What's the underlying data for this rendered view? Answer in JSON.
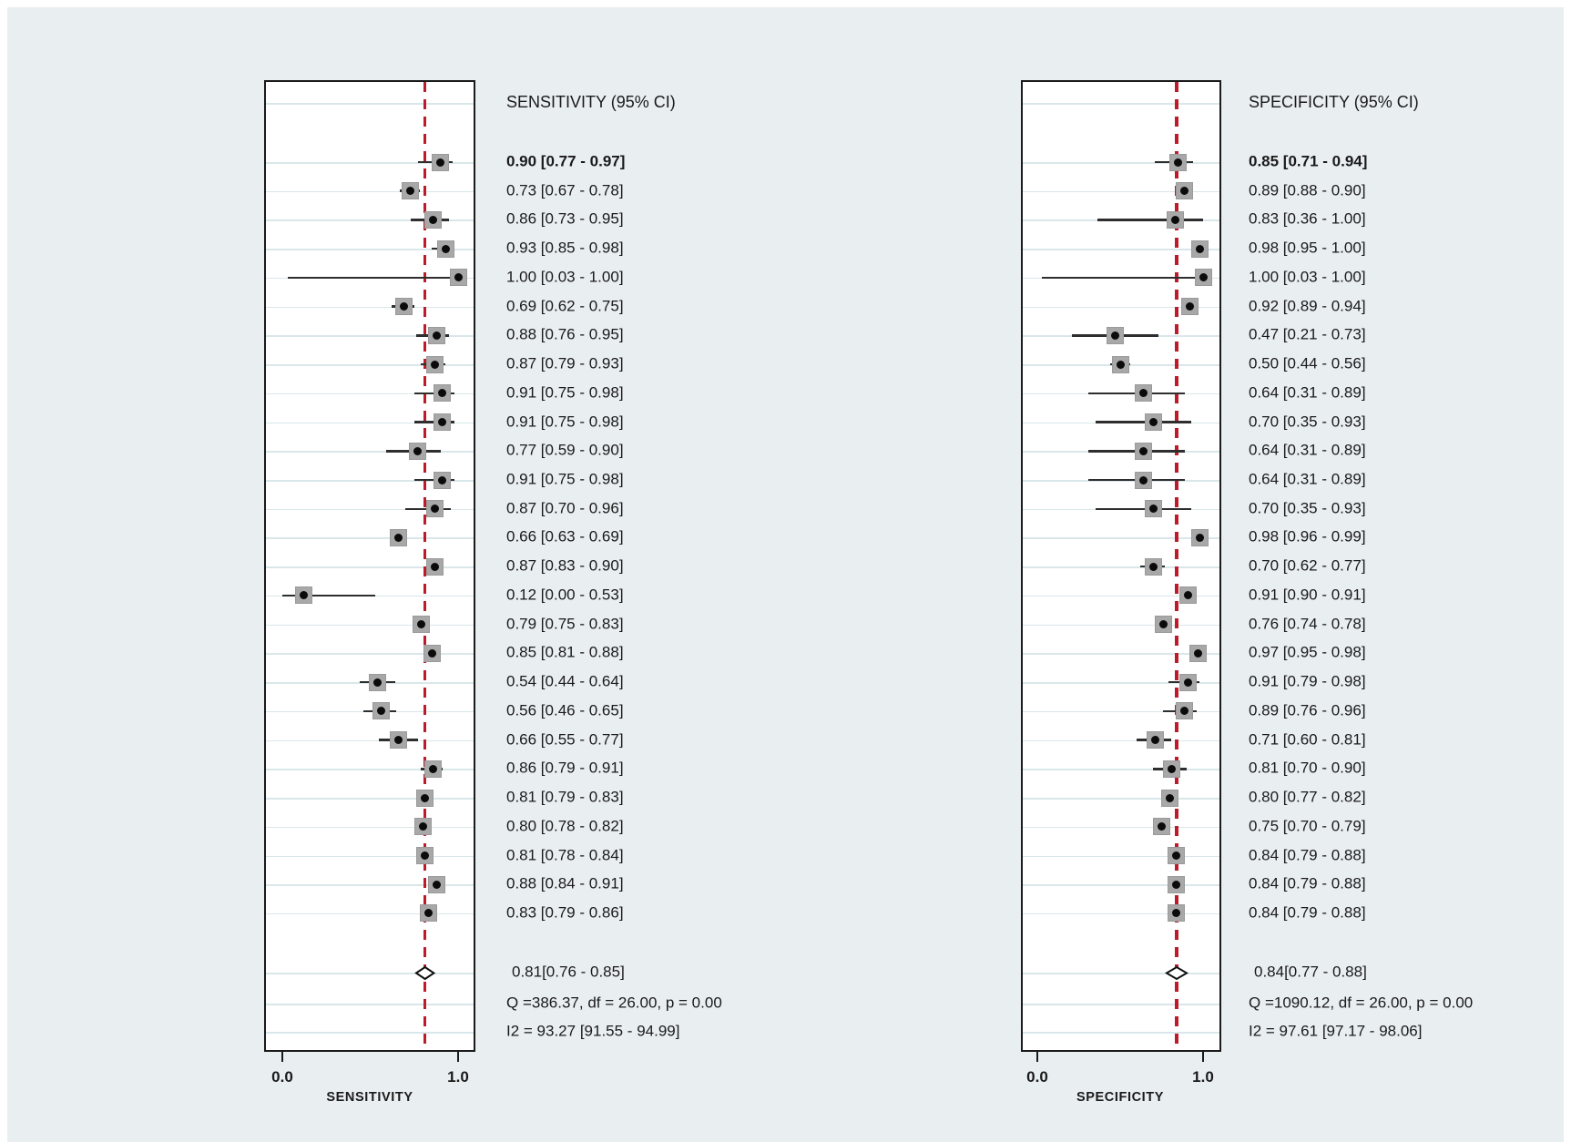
{
  "chart_data": [
    {
      "type": "forest",
      "title": "SENSITIVITY (95% CI)",
      "xlabel": "SENSITIVITY",
      "x_ticks": [
        "0.0",
        "1.0"
      ],
      "xlim": [
        -0.1,
        1.1
      ],
      "grid": true,
      "pooled_line": 0.81,
      "studies": [
        {
          "est": 0.9,
          "lo": 0.77,
          "hi": 0.97,
          "label": "0.90 [0.77 - 0.97]",
          "bold": true
        },
        {
          "est": 0.73,
          "lo": 0.67,
          "hi": 0.78,
          "label": "0.73 [0.67 - 0.78]",
          "bold": false
        },
        {
          "est": 0.86,
          "lo": 0.73,
          "hi": 0.95,
          "label": "0.86 [0.73 - 0.95]",
          "bold": false
        },
        {
          "est": 0.93,
          "lo": 0.85,
          "hi": 0.98,
          "label": "0.93 [0.85 - 0.98]",
          "bold": false
        },
        {
          "est": 1.0,
          "lo": 0.03,
          "hi": 1.0,
          "label": "1.00 [0.03 - 1.00]",
          "bold": false
        },
        {
          "est": 0.69,
          "lo": 0.62,
          "hi": 0.75,
          "label": "0.69 [0.62 - 0.75]",
          "bold": false
        },
        {
          "est": 0.88,
          "lo": 0.76,
          "hi": 0.95,
          "label": "0.88 [0.76 - 0.95]",
          "bold": false
        },
        {
          "est": 0.87,
          "lo": 0.79,
          "hi": 0.93,
          "label": "0.87 [0.79 - 0.93]",
          "bold": false
        },
        {
          "est": 0.91,
          "lo": 0.75,
          "hi": 0.98,
          "label": "0.91 [0.75 - 0.98]",
          "bold": false
        },
        {
          "est": 0.91,
          "lo": 0.75,
          "hi": 0.98,
          "label": "0.91 [0.75 - 0.98]",
          "bold": false
        },
        {
          "est": 0.77,
          "lo": 0.59,
          "hi": 0.9,
          "label": "0.77 [0.59 - 0.90]",
          "bold": false
        },
        {
          "est": 0.91,
          "lo": 0.75,
          "hi": 0.98,
          "label": "0.91 [0.75 - 0.98]",
          "bold": false
        },
        {
          "est": 0.87,
          "lo": 0.7,
          "hi": 0.96,
          "label": "0.87 [0.70 - 0.96]",
          "bold": false
        },
        {
          "est": 0.66,
          "lo": 0.63,
          "hi": 0.69,
          "label": "0.66 [0.63 - 0.69]",
          "bold": false
        },
        {
          "est": 0.87,
          "lo": 0.83,
          "hi": 0.9,
          "label": "0.87 [0.83 - 0.90]",
          "bold": false
        },
        {
          "est": 0.12,
          "lo": 0.0,
          "hi": 0.53,
          "label": "0.12 [0.00 - 0.53]",
          "bold": false
        },
        {
          "est": 0.79,
          "lo": 0.75,
          "hi": 0.83,
          "label": "0.79 [0.75 - 0.83]",
          "bold": false
        },
        {
          "est": 0.85,
          "lo": 0.81,
          "hi": 0.88,
          "label": "0.85 [0.81 - 0.88]",
          "bold": false
        },
        {
          "est": 0.54,
          "lo": 0.44,
          "hi": 0.64,
          "label": "0.54 [0.44 - 0.64]",
          "bold": false
        },
        {
          "est": 0.56,
          "lo": 0.46,
          "hi": 0.65,
          "label": "0.56 [0.46 - 0.65]",
          "bold": false
        },
        {
          "est": 0.66,
          "lo": 0.55,
          "hi": 0.77,
          "label": "0.66 [0.55 - 0.77]",
          "bold": false
        },
        {
          "est": 0.86,
          "lo": 0.79,
          "hi": 0.91,
          "label": "0.86 [0.79 - 0.91]",
          "bold": false
        },
        {
          "est": 0.81,
          "lo": 0.79,
          "hi": 0.83,
          "label": "0.81 [0.79 - 0.83]",
          "bold": false
        },
        {
          "est": 0.8,
          "lo": 0.78,
          "hi": 0.82,
          "label": "0.80 [0.78 - 0.82]",
          "bold": false
        },
        {
          "est": 0.81,
          "lo": 0.78,
          "hi": 0.84,
          "label": "0.81 [0.78 - 0.84]",
          "bold": false
        },
        {
          "est": 0.88,
          "lo": 0.84,
          "hi": 0.91,
          "label": "0.88 [0.84 - 0.91]",
          "bold": false
        },
        {
          "est": 0.83,
          "lo": 0.79,
          "hi": 0.86,
          "label": "0.83 [0.79 - 0.86]",
          "bold": false
        }
      ],
      "summary": {
        "pooled": {
          "est": 0.81,
          "lo": 0.76,
          "hi": 0.85,
          "label": "0.81[0.76 - 0.85]"
        },
        "q_line": "Q =386.37, df = 26.00, p =  0.00",
        "i2_line": "I2 = 93.27 [91.55 - 94.99]"
      }
    },
    {
      "type": "forest",
      "title": "SPECIFICITY (95% CI)",
      "xlabel": "SPECIFICITY",
      "x_ticks": [
        "0.0",
        "1.0"
      ],
      "xlim": [
        -0.1,
        1.1
      ],
      "grid": true,
      "pooled_line": 0.84,
      "studies": [
        {
          "est": 0.85,
          "lo": 0.71,
          "hi": 0.94,
          "label": "0.85 [0.71 - 0.94]",
          "bold": true
        },
        {
          "est": 0.89,
          "lo": 0.88,
          "hi": 0.9,
          "label": "0.89 [0.88 - 0.90]",
          "bold": false
        },
        {
          "est": 0.83,
          "lo": 0.36,
          "hi": 1.0,
          "label": "0.83 [0.36 - 1.00]",
          "bold": false
        },
        {
          "est": 0.98,
          "lo": 0.95,
          "hi": 1.0,
          "label": "0.98 [0.95 - 1.00]",
          "bold": false
        },
        {
          "est": 1.0,
          "lo": 0.03,
          "hi": 1.0,
          "label": "1.00 [0.03 - 1.00]",
          "bold": false
        },
        {
          "est": 0.92,
          "lo": 0.89,
          "hi": 0.94,
          "label": "0.92 [0.89 - 0.94]",
          "bold": false
        },
        {
          "est": 0.47,
          "lo": 0.21,
          "hi": 0.73,
          "label": "0.47 [0.21 - 0.73]",
          "bold": false
        },
        {
          "est": 0.5,
          "lo": 0.44,
          "hi": 0.56,
          "label": "0.50 [0.44 - 0.56]",
          "bold": false
        },
        {
          "est": 0.64,
          "lo": 0.31,
          "hi": 0.89,
          "label": "0.64 [0.31 - 0.89]",
          "bold": false
        },
        {
          "est": 0.7,
          "lo": 0.35,
          "hi": 0.93,
          "label": "0.70 [0.35 - 0.93]",
          "bold": false
        },
        {
          "est": 0.64,
          "lo": 0.31,
          "hi": 0.89,
          "label": "0.64 [0.31 - 0.89]",
          "bold": false
        },
        {
          "est": 0.64,
          "lo": 0.31,
          "hi": 0.89,
          "label": "0.64 [0.31 - 0.89]",
          "bold": false
        },
        {
          "est": 0.7,
          "lo": 0.35,
          "hi": 0.93,
          "label": "0.70 [0.35 - 0.93]",
          "bold": false
        },
        {
          "est": 0.98,
          "lo": 0.96,
          "hi": 0.99,
          "label": "0.98 [0.96 - 0.99]",
          "bold": false
        },
        {
          "est": 0.7,
          "lo": 0.62,
          "hi": 0.77,
          "label": "0.70 [0.62 - 0.77]",
          "bold": false
        },
        {
          "est": 0.91,
          "lo": 0.9,
          "hi": 0.91,
          "label": "0.91 [0.90 - 0.91]",
          "bold": false
        },
        {
          "est": 0.76,
          "lo": 0.74,
          "hi": 0.78,
          "label": "0.76 [0.74 - 0.78]",
          "bold": false
        },
        {
          "est": 0.97,
          "lo": 0.95,
          "hi": 0.98,
          "label": "0.97 [0.95 - 0.98]",
          "bold": false
        },
        {
          "est": 0.91,
          "lo": 0.79,
          "hi": 0.98,
          "label": "0.91 [0.79 - 0.98]",
          "bold": false
        },
        {
          "est": 0.89,
          "lo": 0.76,
          "hi": 0.96,
          "label": "0.89 [0.76 - 0.96]",
          "bold": false
        },
        {
          "est": 0.71,
          "lo": 0.6,
          "hi": 0.81,
          "label": "0.71 [0.60 - 0.81]",
          "bold": false
        },
        {
          "est": 0.81,
          "lo": 0.7,
          "hi": 0.9,
          "label": "0.81 [0.70 - 0.90]",
          "bold": false
        },
        {
          "est": 0.8,
          "lo": 0.77,
          "hi": 0.82,
          "label": "0.80 [0.77 - 0.82]",
          "bold": false
        },
        {
          "est": 0.75,
          "lo": 0.7,
          "hi": 0.79,
          "label": "0.75 [0.70 - 0.79]",
          "bold": false
        },
        {
          "est": 0.84,
          "lo": 0.79,
          "hi": 0.88,
          "label": "0.84 [0.79 - 0.88]",
          "bold": false
        },
        {
          "est": 0.84,
          "lo": 0.79,
          "hi": 0.88,
          "label": "0.84 [0.79 - 0.88]",
          "bold": false
        },
        {
          "est": 0.84,
          "lo": 0.79,
          "hi": 0.88,
          "label": "0.84 [0.79 - 0.88]",
          "bold": false
        }
      ],
      "summary": {
        "pooled": {
          "est": 0.84,
          "lo": 0.77,
          "hi": 0.88,
          "label": "0.84[0.77 - 0.88]"
        },
        "q_line": "Q =1090.12, df = 26.00, p =  0.00",
        "i2_line": "I2 = 97.61 [97.17 - 98.06]"
      }
    }
  ],
  "colors": {
    "background": "#e9eef1",
    "panel_background": "#ffffff",
    "panel_border": "#1a1a1a",
    "gridline": "#d9e7ea",
    "pooled_line_red": "#be1b2a",
    "marker_square": "#a8a8a8",
    "marker_dot": "#0b0b0b",
    "ci_line": "#2e2e2e",
    "text": "#1a1a1a"
  }
}
